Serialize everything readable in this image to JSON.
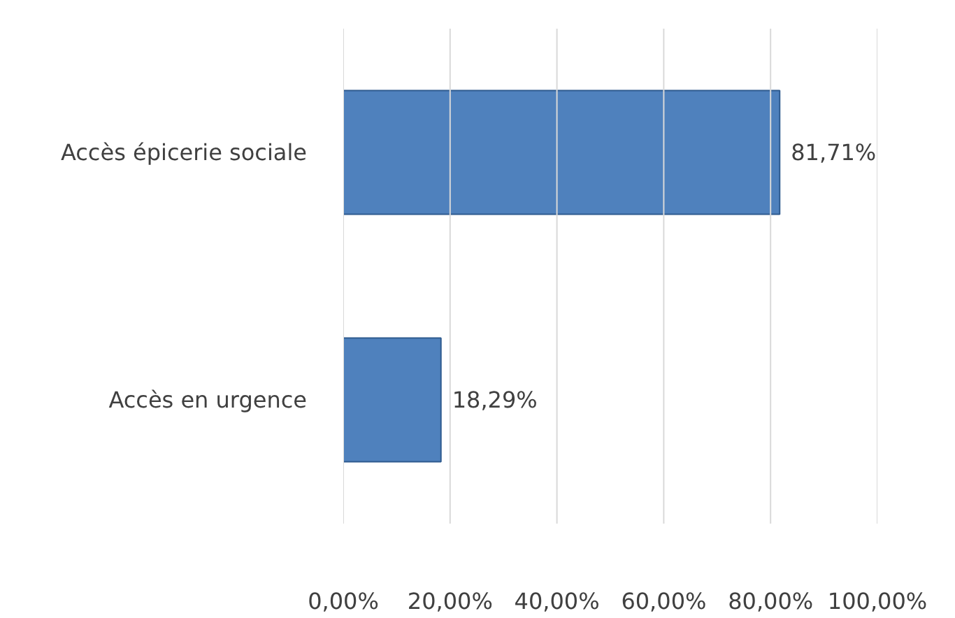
{
  "chart_data": {
    "type": "bar",
    "orientation": "horizontal",
    "categories": [
      "Accès épicerie sociale",
      "Accès en urgence"
    ],
    "values": [
      81.71,
      18.29
    ],
    "value_labels": [
      "81,71%",
      "18,29%"
    ],
    "color": "#4f81bd",
    "xlim": [
      0,
      100
    ],
    "xticks": [
      {
        "value": 0,
        "label": "0,00%"
      },
      {
        "value": 20,
        "label": "20,00%"
      },
      {
        "value": 40,
        "label": "40,00%"
      },
      {
        "value": 60,
        "label": "60,00%"
      },
      {
        "value": 80,
        "label": "80,00%"
      },
      {
        "value": 100,
        "label": "100,00%"
      }
    ],
    "grid": "x"
  }
}
